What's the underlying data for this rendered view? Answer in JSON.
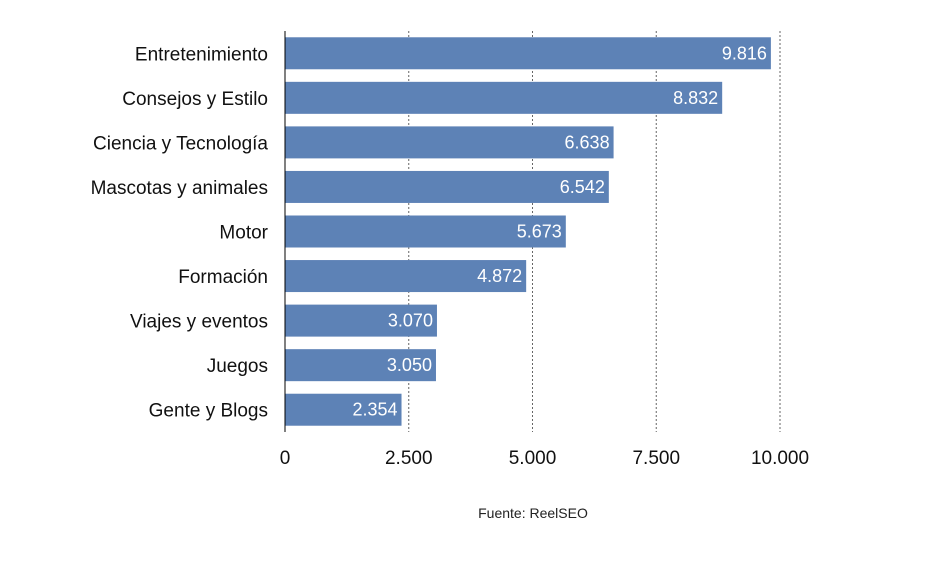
{
  "chart_data": {
    "type": "bar",
    "orientation": "horizontal",
    "categories": [
      "Entretenimiento",
      "Consejos y Estilo",
      "Ciencia y Tecnología",
      "Mascotas y animales",
      "Motor",
      "Formación",
      "Viajes y eventos",
      "Juegos",
      "Gente y Blogs"
    ],
    "values": [
      9816,
      8832,
      6638,
      6542,
      5673,
      4872,
      3070,
      3050,
      2354
    ],
    "value_labels": [
      "9.816",
      "8.832",
      "6.638",
      "6.542",
      "5.673",
      "4.872",
      "3.070",
      "3.050",
      "2.354"
    ],
    "xlim": [
      0,
      10000
    ],
    "xticks": [
      0,
      2500,
      5000,
      7500,
      10000
    ],
    "xtick_labels": [
      "0",
      "2.500",
      "5.000",
      "7.500",
      "10.000"
    ],
    "grid": "vertical-dashed",
    "bar_color": "#5d82b6",
    "title": "",
    "xlabel": "",
    "ylabel": "",
    "source": "Fuente: ReelSEO"
  }
}
